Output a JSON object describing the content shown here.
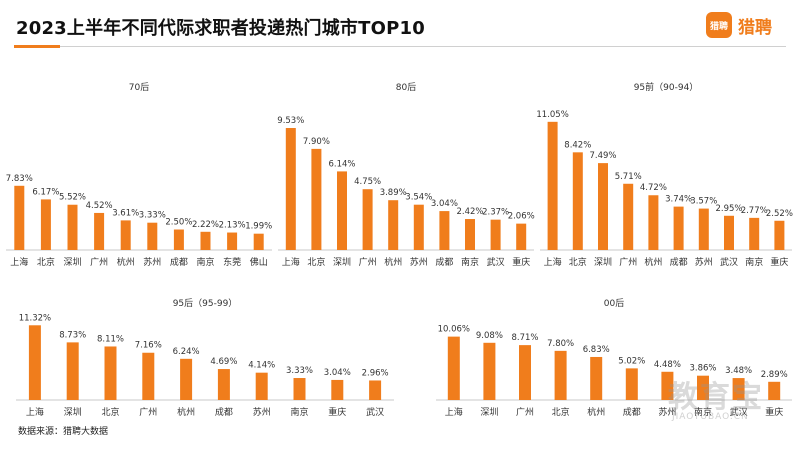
{
  "header": {
    "title": "2023上半年不同代际求职者投递热门城市TOP10",
    "logo_badge": "猎聘",
    "logo_text": "猎聘"
  },
  "colors": {
    "bar": "#f07d1c",
    "accent": "#f07d1c",
    "axis": "#c8c8c8",
    "text": "#333333"
  },
  "footer": {
    "source": "数据来源：猎聘大数据"
  },
  "watermark": {
    "main": "教育宝",
    "sub": "JIAOYUBAO.CN"
  },
  "chart_data": [
    {
      "type": "bar",
      "title": "70后",
      "categories": [
        "上海",
        "北京",
        "深圳",
        "广州",
        "杭州",
        "苏州",
        "成都",
        "南京",
        "东莞",
        "佛山"
      ],
      "values": [
        7.83,
        6.17,
        5.52,
        4.52,
        3.61,
        3.33,
        2.5,
        2.22,
        2.13,
        1.99
      ],
      "labels": [
        "7.83%",
        "6.17%",
        "5.52%",
        "4.52%",
        "3.61%",
        "3.33%",
        "2.50%",
        "2.22%",
        "2.13%",
        "1.99%"
      ],
      "ylim": [
        0,
        11.5
      ]
    },
    {
      "type": "bar",
      "title": "80后",
      "categories": [
        "上海",
        "北京",
        "深圳",
        "广州",
        "杭州",
        "苏州",
        "成都",
        "南京",
        "武汉",
        "重庆"
      ],
      "values": [
        9.53,
        7.9,
        6.14,
        4.75,
        3.89,
        3.54,
        3.04,
        2.42,
        2.37,
        2.06
      ],
      "labels": [
        "9.53%",
        "7.90%",
        "6.14%",
        "4.75%",
        "3.89%",
        "3.54%",
        "3.04%",
        "2.42%",
        "2.37%",
        "2.06%"
      ],
      "ylim": [
        0,
        11.5
      ]
    },
    {
      "type": "bar",
      "title": "95前（90-94）",
      "categories": [
        "上海",
        "北京",
        "深圳",
        "广州",
        "杭州",
        "成都",
        "苏州",
        "武汉",
        "南京",
        "重庆"
      ],
      "values": [
        11.05,
        8.42,
        7.49,
        5.71,
        4.72,
        3.74,
        3.57,
        2.95,
        2.77,
        2.52
      ],
      "labels": [
        "11.05%",
        "8.42%",
        "7.49%",
        "5.71%",
        "4.72%",
        "3.74%",
        "3.57%",
        "2.95%",
        "2.77%",
        "2.52%"
      ],
      "ylim": [
        0,
        11.5
      ]
    },
    {
      "type": "bar",
      "title": "95后（95-99）",
      "categories": [
        "上海",
        "深圳",
        "北京",
        "广州",
        "杭州",
        "成都",
        "苏州",
        "南京",
        "重庆",
        "武汉"
      ],
      "values": [
        11.32,
        8.73,
        8.11,
        7.16,
        6.24,
        4.69,
        4.14,
        3.33,
        3.04,
        2.96
      ],
      "labels": [
        "11.32%",
        "8.73%",
        "8.11%",
        "7.16%",
        "6.24%",
        "4.69%",
        "4.14%",
        "3.33%",
        "3.04%",
        "2.96%"
      ],
      "ylim": [
        0,
        11.5
      ]
    },
    {
      "type": "bar",
      "title": "00后",
      "categories": [
        "上海",
        "深圳",
        "广州",
        "北京",
        "杭州",
        "成都",
        "苏州",
        "南京",
        "武汉",
        "重庆"
      ],
      "values": [
        10.06,
        9.08,
        8.71,
        7.8,
        6.83,
        5.02,
        4.48,
        3.86,
        3.48,
        2.89
      ],
      "labels": [
        "10.06%",
        "9.08%",
        "8.71%",
        "7.80%",
        "6.83%",
        "5.02%",
        "4.48%",
        "3.86%",
        "3.48%",
        "2.89%"
      ],
      "ylim": [
        0,
        11.5
      ]
    }
  ]
}
